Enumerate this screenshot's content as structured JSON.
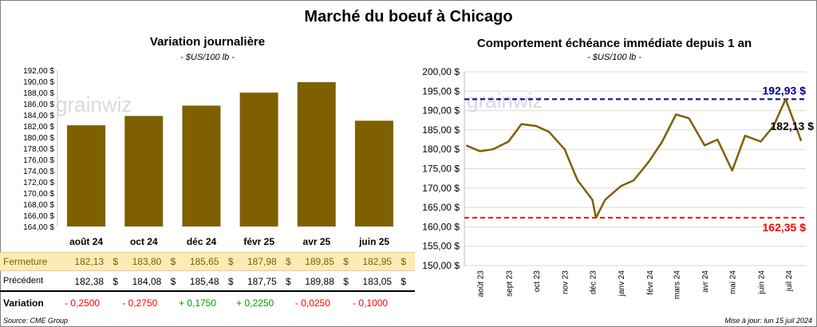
{
  "title": "Marché du boeuf à Chicago",
  "left_chart": {
    "title": "Variation  journalière",
    "unit": "- $US/100 lb -",
    "watermark": "grainwiz",
    "y_ticks": [
      "164,00 $",
      "166,00 $",
      "168,00 $",
      "170,00 $",
      "172,00 $",
      "174,00 $",
      "176,00 $",
      "178,00 $",
      "180,00 $",
      "182,00 $",
      "184,00 $",
      "186,00 $",
      "188,00 $",
      "190,00 $",
      "192,00 $"
    ],
    "bar_color": "#7f6000"
  },
  "right_chart": {
    "title": "Comportement  échéance immédiate depuis 1 an",
    "unit": "- $US/100 lb -",
    "watermark": "grainwiz",
    "y_ticks": [
      "150,00 $",
      "155,00 $",
      "160,00 $",
      "165,00 $",
      "170,00 $",
      "175,00 $",
      "180,00 $",
      "185,00 $",
      "190,00 $",
      "195,00 $",
      "200,00 $"
    ],
    "x_ticks": [
      "août 23",
      "sept 23",
      "oct 23",
      "nov 23",
      "déc 23",
      "janv 24",
      "févr 24",
      "mars 24",
      "avr 24",
      "mai 24",
      "juin 24",
      "juil 24"
    ],
    "max_label": "192,93 $",
    "min_label": "162,35 $",
    "last_label": "182,13 $",
    "line_color": "#7f6000",
    "max_color": "#00008b",
    "min_color": "#ff0000"
  },
  "chart_data": [
    {
      "type": "bar",
      "categories": [
        "août 24",
        "oct 24",
        "déc 24",
        "févr 25",
        "avr 25",
        "juin 25"
      ],
      "values": [
        182.13,
        183.8,
        185.65,
        187.98,
        189.85,
        182.95
      ],
      "title": "Variation  journalière",
      "ylabel": "- $US/100 lb -",
      "ylim": [
        164,
        192
      ]
    },
    {
      "type": "line",
      "title": "Comportement  échéance immédiate depuis 1 an",
      "ylabel": "- $US/100 lb -",
      "ylim": [
        150,
        200
      ],
      "x": [
        "2023-07-17",
        "2023-08-01",
        "2023-08-15",
        "2023-09-01",
        "2023-09-15",
        "2023-10-01",
        "2023-10-15",
        "2023-11-01",
        "2023-11-15",
        "2023-12-01",
        "2023-12-05",
        "2023-12-15",
        "2024-01-01",
        "2024-01-15",
        "2024-02-01",
        "2024-02-15",
        "2024-03-01",
        "2024-03-15",
        "2024-04-01",
        "2024-04-15",
        "2024-05-01",
        "2024-05-15",
        "2024-06-01",
        "2024-06-15",
        "2024-06-28",
        "2024-07-15"
      ],
      "series": [
        {
          "values": [
            181,
            179.5,
            180,
            182,
            186.5,
            186,
            184.5,
            180,
            172,
            167,
            162.35,
            167,
            170.5,
            172,
            177,
            182,
            189,
            188,
            181,
            182.5,
            174.5,
            183.5,
            182,
            186,
            192.93,
            182.13
          ]
        }
      ],
      "annotations": [
        "192,93 $",
        "162,35 $",
        "182,13 $"
      ]
    }
  ],
  "table": {
    "headers": [
      "août 24",
      "oct 24",
      "déc 24",
      "févr 25",
      "avr 25",
      "juin 25"
    ],
    "currency": "$",
    "rows": [
      {
        "label": "Fermeture",
        "values": [
          "182,13",
          "183,80",
          "185,65",
          "187,98",
          "189,85",
          "182,95"
        ]
      },
      {
        "label": "Précédent",
        "values": [
          "182,38",
          "184,08",
          "185,48",
          "187,75",
          "189,88",
          "183,05"
        ]
      }
    ],
    "variation_label": "Variation",
    "variation": [
      "- 0,2500",
      "- 0,2750",
      "+ 0,1750",
      "+ 0,2250",
      "- 0,0250",
      "- 0,1000"
    ]
  },
  "footer": {
    "source": "Source: CME Group",
    "updated": "Mise à jour: lun 15 juil 2024"
  }
}
